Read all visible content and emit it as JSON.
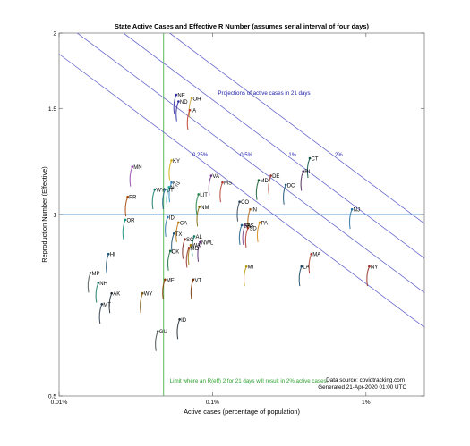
{
  "chart_data": {
    "type": "scatter",
    "title": "State Active Cases and Effective R Number (assumes serial interval of four days)",
    "xlabel": "Active cases (percentage of population)",
    "ylabel": "Reproduction Number (Effective)",
    "x_scale": "log",
    "y_scale": "log",
    "xlim": [
      0.01,
      2.4
    ],
    "ylim": [
      0.5,
      2
    ],
    "x_ticks": [
      {
        "value": 0.01,
        "label": "0.01%"
      },
      {
        "value": 0.1,
        "label": "0.1%"
      },
      {
        "value": 1,
        "label": "1%"
      }
    ],
    "y_ticks": [
      {
        "value": 0.5,
        "label": "0.5"
      },
      {
        "value": 1,
        "label": "1"
      },
      {
        "value": 1.5,
        "label": "1.5"
      },
      {
        "value": 2,
        "label": "2"
      }
    ],
    "grid": false,
    "reference_line_y": 1,
    "limit_line_x": 0.048,
    "colors": {
      "axes": "#555555",
      "reference_line": "#5b9bd5",
      "limit_line": "#33aa33",
      "projection_lines": "#6a6acd",
      "projection_label": "#1a1aa6",
      "limit_label": "#2ca02c"
    },
    "projections": {
      "label": "Projections of active cases in 21 days",
      "lines": [
        {
          "label": "0.25%",
          "target": 0.25
        },
        {
          "label": "0.5%",
          "target": 0.5
        },
        {
          "label": "1%",
          "target": 1
        },
        {
          "label": "2%",
          "target": 2
        }
      ]
    },
    "limit_label": "Limit where an R(eff) 2 for 21 days will result in 2% active cases.",
    "footer": {
      "line1": "Data source: covidtracking.com",
      "line2": "Generated 21-Apr-2020 01:00 UTC"
    },
    "series": [
      {
        "label": "NE",
        "x": 0.058,
        "y": 1.58,
        "color": "#2d2d9f"
      },
      {
        "label": "ND",
        "x": 0.06,
        "y": 1.54,
        "color": "#2d2d9f"
      },
      {
        "label": "OH",
        "x": 0.073,
        "y": 1.56,
        "color": "#c8a83a"
      },
      {
        "label": "IA",
        "x": 0.071,
        "y": 1.49,
        "color": "#c0392b"
      },
      {
        "label": "MN",
        "x": 0.03,
        "y": 1.2,
        "color": "#8e44ad"
      },
      {
        "label": "KY",
        "x": 0.054,
        "y": 1.23,
        "color": "#d4ac0d"
      },
      {
        "label": "0.25%",
        "x": 0.001,
        "y": 0.001,
        "color": "#ffffff",
        "hidden": true
      },
      {
        "label": "KS",
        "x": 0.054,
        "y": 1.13,
        "color": "#2e86c1"
      },
      {
        "label": "NC",
        "x": 0.052,
        "y": 1.11,
        "color": "#17a589"
      },
      {
        "label": "WY",
        "x": 0.042,
        "y": 1.1,
        "color": "#117864"
      },
      {
        "label": "UT",
        "x": 0.049,
        "y": 1.1,
        "color": "#1f618d"
      },
      {
        "label": "PR",
        "x": 0.028,
        "y": 1.07,
        "color": "#a04000"
      },
      {
        "label": "VA",
        "x": 0.098,
        "y": 1.16,
        "color": "#6c3483"
      },
      {
        "label": "MS",
        "x": 0.116,
        "y": 1.13,
        "color": "#b03a2e"
      },
      {
        "label": "LIT",
        "x": 0.081,
        "y": 1.08,
        "color": "#1e8449"
      },
      {
        "label": "NM",
        "x": 0.082,
        "y": 1.03,
        "color": "#7d6608"
      },
      {
        "label": "ID",
        "x": 0.051,
        "y": 0.99,
        "color": "#2874a6"
      },
      {
        "label": "OR",
        "x": 0.027,
        "y": 0.98,
        "color": "#148f77"
      },
      {
        "label": "CA",
        "x": 0.06,
        "y": 0.97,
        "color": "#b9770e"
      },
      {
        "label": "TX",
        "x": 0.056,
        "y": 0.93,
        "color": "#1a5276"
      },
      {
        "label": "SC",
        "x": 0.066,
        "y": 0.91,
        "color": "#7b241c"
      },
      {
        "label": "AL",
        "x": 0.076,
        "y": 0.92,
        "color": "#117a65"
      },
      {
        "label": "NWL",
        "x": 0.083,
        "y": 0.9,
        "color": "#5b2c6f"
      },
      {
        "label": "WA",
        "x": 0.072,
        "y": 0.89,
        "color": "#9a7d0a"
      },
      {
        "label": "MO",
        "x": 0.07,
        "y": 0.88,
        "color": "#943126"
      },
      {
        "label": "OK",
        "x": 0.053,
        "y": 0.87,
        "color": "#196f3d"
      },
      {
        "label": "CO",
        "x": 0.15,
        "y": 1.05,
        "color": "#2e4053"
      },
      {
        "label": "IN",
        "x": 0.176,
        "y": 1.02,
        "color": "#af601a"
      },
      {
        "label": "GA",
        "x": 0.155,
        "y": 0.96,
        "color": "#1f618d"
      },
      {
        "label": "SD",
        "x": 0.17,
        "y": 0.95,
        "color": "#a93226"
      },
      {
        "label": "RS",
        "x": 0.163,
        "y": 0.96,
        "color": "#76448a"
      },
      {
        "label": "PA",
        "x": 0.203,
        "y": 0.97,
        "color": "#d68910"
      },
      {
        "label": "MD",
        "x": 0.2,
        "y": 1.14,
        "color": "#145a32"
      },
      {
        "label": "DE",
        "x": 0.24,
        "y": 1.16,
        "color": "#922b21"
      },
      {
        "label": "DC",
        "x": 0.3,
        "y": 1.12,
        "color": "#1b4f72"
      },
      {
        "label": "CT",
        "x": 0.43,
        "y": 1.24,
        "color": "#0b5345"
      },
      {
        "label": "RI",
        "x": 0.39,
        "y": 1.18,
        "color": "#4a235a"
      },
      {
        "label": "NJ",
        "x": 0.81,
        "y": 1.02,
        "color": "#2471a3"
      },
      {
        "label": "MA",
        "x": 0.44,
        "y": 0.86,
        "color": "#b03a2e"
      },
      {
        "label": "LA",
        "x": 0.38,
        "y": 0.82,
        "color": "#154360"
      },
      {
        "label": "NY",
        "x": 1.05,
        "y": 0.82,
        "color": "#922b21"
      },
      {
        "label": "MI",
        "x": 0.166,
        "y": 0.82,
        "color": "#b7950b"
      },
      {
        "label": "HI",
        "x": 0.021,
        "y": 0.86,
        "color": "#1a5276"
      },
      {
        "label": "MP",
        "x": 0.016,
        "y": 0.8,
        "color": "#4d5656"
      },
      {
        "label": "ME",
        "x": 0.049,
        "y": 0.78,
        "color": "#873600"
      },
      {
        "label": "VT",
        "x": 0.075,
        "y": 0.78,
        "color": "#6e2c00"
      },
      {
        "label": "NH",
        "x": 0.018,
        "y": 0.77,
        "color": "#117864"
      },
      {
        "label": "AK",
        "x": 0.022,
        "y": 0.74,
        "color": "#1b2631"
      },
      {
        "label": "WY",
        "x": 0.035,
        "y": 0.74,
        "color": "#7e5109"
      },
      {
        "label": "MT",
        "x": 0.019,
        "y": 0.71,
        "color": "#283747"
      },
      {
        "label": "ID",
        "x": 0.061,
        "y": 0.67,
        "color": "#1c2833"
      },
      {
        "label": "GU",
        "x": 0.044,
        "y": 0.64,
        "color": "#424949"
      }
    ]
  }
}
